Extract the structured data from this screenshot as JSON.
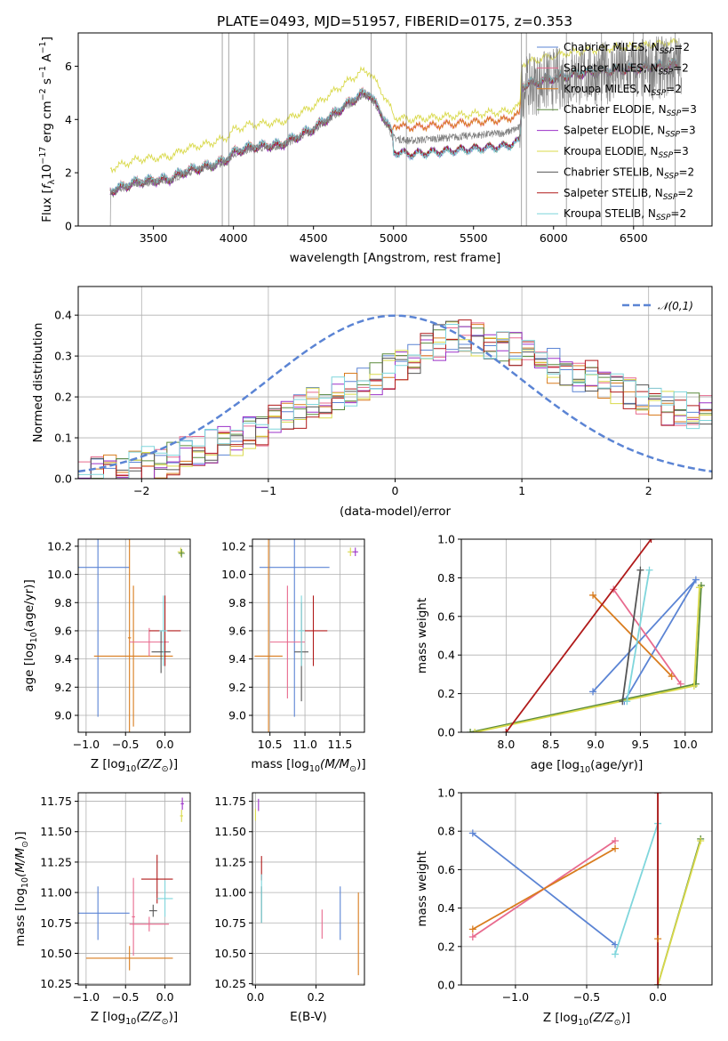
{
  "figure": {
    "title": "PLATE=0493, MJD=51957, FIBERID=0175, z=0.353"
  },
  "models": [
    {
      "name": "Chabrier MILES",
      "nssp": "2",
      "color": "#5b84d4"
    },
    {
      "name": "Salpeter MILES",
      "nssp": "2",
      "color": "#e86a8e"
    },
    {
      "name": "Kroupa MILES",
      "nssp": "2",
      "color": "#d97c1e"
    },
    {
      "name": "Chabrier ELODIE",
      "nssp": "3",
      "color": "#5a8a3c"
    },
    {
      "name": "Salpeter ELODIE",
      "nssp": "3",
      "color": "#9b30c8"
    },
    {
      "name": "Kroupa ELODIE",
      "nssp": "3",
      "color": "#d9d94a"
    },
    {
      "name": "Chabrier STELIB",
      "nssp": "2",
      "color": "#555555"
    },
    {
      "name": "Salpeter STELIB",
      "nssp": "2",
      "color": "#b01a1a"
    },
    {
      "name": "Kroupa STELIB",
      "nssp": "2",
      "color": "#7fd6dc"
    }
  ],
  "chart_data": [
    {
      "id": "spectrum",
      "type": "line",
      "xlabel": "wavelength [Angstrom, rest frame]",
      "ylabel_parts": [
        "Flux [",
        "f",
        "λ",
        "10",
        "−17",
        " erg cm",
        "−2",
        " s",
        "−1",
        " A",
        "−1",
        "]"
      ],
      "xlim": [
        3030,
        6990
      ],
      "ylim": [
        0,
        7.25
      ],
      "xticks": [
        3500,
        4000,
        4500,
        5000,
        5500,
        6000,
        6500
      ],
      "yticks": [
        0,
        2,
        4,
        6
      ],
      "data_color": "#808080",
      "continuum_knots": [
        [
          3230,
          1.25
        ],
        [
          3400,
          1.6
        ],
        [
          3600,
          1.7
        ],
        [
          3700,
          2.0
        ],
        [
          3850,
          2.2
        ],
        [
          3950,
          2.4
        ],
        [
          4000,
          2.7
        ],
        [
          4100,
          2.9
        ],
        [
          4300,
          3.0
        ],
        [
          4500,
          3.6
        ],
        [
          4800,
          4.9
        ],
        [
          4850,
          4.9
        ],
        [
          4950,
          3.9
        ],
        [
          5000,
          3.3
        ],
        [
          5100,
          3.2
        ],
        [
          5300,
          3.3
        ],
        [
          5500,
          3.4
        ],
        [
          5700,
          3.5
        ],
        [
          5790,
          3.7
        ],
        [
          5800,
          5.2
        ],
        [
          6000,
          5.5
        ],
        [
          6200,
          5.7
        ],
        [
          6400,
          5.8
        ],
        [
          6600,
          5.9
        ],
        [
          6760,
          6.0
        ]
      ],
      "model_offsets": [
        0.12,
        0.12,
        0.12,
        0.0,
        0.0,
        0.9,
        0.05,
        0.05,
        0.12
      ],
      "model_region_offsets": [
        {
          "from": 5000,
          "to": 5800,
          "offsets": [
            -0.5,
            0.5,
            0.5,
            -0.5,
            -0.5,
            0.8,
            -0.5,
            -0.5,
            -0.55
          ]
        }
      ],
      "noise": 0.15,
      "noise_regions": [
        {
          "from": 5790,
          "to": 6800,
          "noise": 1.2
        }
      ],
      "spikes": [
        3930,
        3970,
        4130,
        4340,
        4860,
        5080,
        5800,
        5830,
        6080,
        6300,
        6500,
        6560,
        6760
      ],
      "legend_position": "upper right"
    },
    {
      "id": "residual_hist",
      "type": "step",
      "xlabel": "(data-model)/error",
      "ylabel": "Normed distribution",
      "xlim": [
        -2.5,
        2.5
      ],
      "ylim": [
        0,
        0.47
      ],
      "xticks": [
        -2,
        -1,
        0,
        1,
        2
      ],
      "yticks": [
        0.0,
        0.1,
        0.2,
        0.3,
        0.4
      ],
      "bin_width": 0.1,
      "gaussian": {
        "label": "𝒩(0,1)",
        "mu": 0,
        "sigma": 1,
        "color": "#5b84d4"
      },
      "envelope": [
        [
          -2.5,
          0.0
        ],
        [
          -2.0,
          0.03
        ],
        [
          -1.5,
          0.07
        ],
        [
          -1.0,
          0.13
        ],
        [
          -0.5,
          0.2
        ],
        [
          0.0,
          0.27
        ],
        [
          0.3,
          0.33
        ],
        [
          0.6,
          0.35
        ],
        [
          0.9,
          0.32
        ],
        [
          1.2,
          0.28
        ],
        [
          1.6,
          0.24
        ],
        [
          2.0,
          0.18
        ],
        [
          2.5,
          0.16
        ]
      ],
      "legend_position": "upper right"
    },
    {
      "id": "age_vs_Z",
      "type": "errorbar",
      "xlabel_parts": [
        "Z [log",
        "10",
        "(Z/Z",
        "⊙",
        ")]"
      ],
      "ylabel_parts": [
        "age  [log",
        "10",
        "(age/yr)]"
      ],
      "xlim": [
        -1.1,
        0.32
      ],
      "ylim": [
        8.88,
        10.25
      ],
      "xticks": [
        -1.0,
        -0.5,
        0.0
      ],
      "yticks": [
        9.0,
        9.2,
        9.4,
        9.6,
        9.8,
        10.0,
        10.2
      ],
      "points": [
        {
          "x": -0.85,
          "xerr": 0.4,
          "y": 10.05,
          "yerr": 1.06,
          "model": 0
        },
        {
          "x": -0.4,
          "xerr": 0.5,
          "y": 9.42,
          "yerr": 0.5,
          "model": 2
        },
        {
          "x": -0.45,
          "xerr": 0.02,
          "y": 9.55,
          "yerr": 0.7,
          "model": 2
        },
        {
          "x": -0.2,
          "xerr": 0.25,
          "y": 9.52,
          "yerr": 0.1,
          "model": 1
        },
        {
          "x": 0.0,
          "xerr": 0.2,
          "y": 9.6,
          "yerr": 0.25,
          "model": 7
        },
        {
          "x": -0.05,
          "xerr": 0.12,
          "y": 9.45,
          "yerr": 0.15,
          "model": 6
        },
        {
          "x": -0.02,
          "xerr": 0.05,
          "y": 9.6,
          "yerr": 0.25,
          "model": 8
        },
        {
          "x": 0.2,
          "xerr": 0.04,
          "y": 10.16,
          "yerr": 0.03,
          "model": 5
        },
        {
          "x": 0.21,
          "xerr": 0.04,
          "y": 10.15,
          "yerr": 0.03,
          "model": 3
        }
      ]
    },
    {
      "id": "age_vs_mass",
      "type": "errorbar",
      "xlabel_parts": [
        "mass [log",
        "10",
        "(M/M",
        "⊙",
        ")]"
      ],
      "xlim": [
        10.25,
        11.85
      ],
      "ylim": [
        8.88,
        10.25
      ],
      "xticks": [
        10.5,
        11.0,
        11.5
      ],
      "yticks": [
        9.0,
        9.2,
        9.4,
        9.6,
        9.8,
        10.0,
        10.2
      ],
      "points": [
        {
          "x": 10.85,
          "xerr": 0.5,
          "y": 10.05,
          "yerr": 1.06,
          "model": 0
        },
        {
          "x": 10.48,
          "xerr": 0.2,
          "y": 9.42,
          "yerr": 1.2,
          "model": 2
        },
        {
          "x": 10.75,
          "xerr": 0.25,
          "y": 9.52,
          "yerr": 0.4,
          "model": 1
        },
        {
          "x": 11.12,
          "xerr": 0.2,
          "y": 9.6,
          "yerr": 0.25,
          "model": 7
        },
        {
          "x": 10.95,
          "xerr": 0.1,
          "y": 9.45,
          "yerr": 0.35,
          "model": 6
        },
        {
          "x": 10.95,
          "xerr": 0.05,
          "y": 9.6,
          "yerr": 0.25,
          "model": 8
        },
        {
          "x": 11.65,
          "xerr": 0.04,
          "y": 10.16,
          "yerr": 0.03,
          "model": 5
        },
        {
          "x": 11.72,
          "xerr": 0.04,
          "y": 10.16,
          "yerr": 0.03,
          "model": 4
        }
      ]
    },
    {
      "id": "weight_vs_age",
      "type": "line",
      "xlabel_parts": [
        "age  [log",
        "10",
        "(age/yr)]"
      ],
      "ylabel": "mass weight",
      "xlim": [
        7.5,
        10.3
      ],
      "ylim": [
        0,
        1
      ],
      "xticks": [
        8.0,
        8.5,
        9.0,
        9.5,
        10.0
      ],
      "yticks": [
        0.0,
        0.2,
        0.4,
        0.6,
        0.8,
        1.0
      ],
      "series": [
        {
          "model": 0,
          "x": [
            8.97,
            10.12,
            9.32
          ],
          "y": [
            0.21,
            0.79,
            0.16
          ]
        },
        {
          "model": 1,
          "x": [
            9.2,
            9.95
          ],
          "y": [
            0.74,
            0.25
          ]
        },
        {
          "model": 2,
          "x": [
            8.97,
            9.85
          ],
          "y": [
            0.71,
            0.29
          ]
        },
        {
          "model": 3,
          "x": [
            7.6,
            10.12,
            10.18
          ],
          "y": [
            0.0,
            0.25,
            0.76
          ]
        },
        {
          "model": 5,
          "x": [
            7.65,
            10.1,
            10.16
          ],
          "y": [
            0.0,
            0.24,
            0.75
          ]
        },
        {
          "model": 6,
          "x": [
            9.3,
            9.5
          ],
          "y": [
            0.16,
            0.84
          ]
        },
        {
          "model": 7,
          "x": [
            8.0,
            9.62
          ],
          "y": [
            0.0,
            1.0
          ]
        },
        {
          "model": 8,
          "x": [
            9.35,
            9.6
          ],
          "y": [
            0.16,
            0.84
          ]
        }
      ]
    },
    {
      "id": "mass_vs_Z",
      "type": "errorbar",
      "xlabel_parts": [
        "Z [log",
        "10",
        "(Z/Z",
        "⊙",
        ")]"
      ],
      "ylabel_parts": [
        "mass [log",
        "10",
        "(M/M",
        "⊙",
        ")]"
      ],
      "xlim": [
        -1.1,
        0.32
      ],
      "ylim": [
        10.24,
        11.82
      ],
      "xticks": [
        -1.0,
        -0.5,
        0.0
      ],
      "yticks": [
        10.25,
        10.5,
        10.75,
        11.0,
        11.25,
        11.5,
        11.75
      ],
      "points": [
        {
          "x": -0.85,
          "xerr": 0.4,
          "y": 10.83,
          "yerr": 0.22,
          "model": 0
        },
        {
          "x": -0.45,
          "xerr": 0.55,
          "y": 10.46,
          "yerr": 0.1,
          "model": 2
        },
        {
          "x": -0.4,
          "xerr": 0.02,
          "y": 10.8,
          "yerr": 0.32,
          "model": 1
        },
        {
          "x": -0.2,
          "xerr": 0.25,
          "y": 10.74,
          "yerr": 0.06,
          "model": 1
        },
        {
          "x": -0.1,
          "xerr": 0.2,
          "y": 11.11,
          "yerr": 0.2,
          "model": 7
        },
        {
          "x": -0.15,
          "xerr": 0.05,
          "y": 10.85,
          "yerr": 0.05,
          "model": 6
        },
        {
          "x": 0.0,
          "xerr": 0.1,
          "y": 10.95,
          "yerr": 0.15,
          "model": 8
        },
        {
          "x": 0.22,
          "xerr": 0.02,
          "y": 11.73,
          "yerr": 0.05,
          "model": 4
        },
        {
          "x": 0.21,
          "xerr": 0.02,
          "y": 11.63,
          "yerr": 0.05,
          "model": 5
        }
      ]
    },
    {
      "id": "mass_vs_EBV",
      "type": "errorbar",
      "xlabel": "E(B-V)",
      "xlim": [
        -0.01,
        0.36
      ],
      "ylim": [
        10.24,
        11.82
      ],
      "xticks": [
        0.0,
        0.2
      ],
      "yticks": [
        10.25,
        10.5,
        10.75,
        11.0,
        11.25,
        11.5,
        11.75
      ],
      "points": [
        {
          "x": 0.28,
          "xerr": 0,
          "y": 10.83,
          "yerr": 0.22,
          "model": 0
        },
        {
          "x": 0.34,
          "xerr": 0,
          "y": 10.66,
          "yerr": 0.34,
          "model": 2
        },
        {
          "x": 0.22,
          "xerr": 0,
          "y": 10.74,
          "yerr": 0.12,
          "model": 1
        },
        {
          "x": 0.02,
          "xerr": 0,
          "y": 11.2,
          "yerr": 0.1,
          "model": 7
        },
        {
          "x": 0.02,
          "xerr": 0,
          "y": 10.9,
          "yerr": 0.15,
          "model": 6
        },
        {
          "x": 0.02,
          "xerr": 0,
          "y": 10.95,
          "yerr": 0.2,
          "model": 8
        },
        {
          "x": 0.01,
          "xerr": 0,
          "y": 11.72,
          "yerr": 0.05,
          "model": 4
        },
        {
          "x": 0.0,
          "xerr": 0,
          "y": 11.64,
          "yerr": 0.05,
          "model": 5
        }
      ]
    },
    {
      "id": "weight_vs_Z",
      "type": "line",
      "xlabel_parts": [
        "Z [log",
        "10",
        "(Z/Z",
        "⊙",
        ")]"
      ],
      "ylabel": "mass weight",
      "xlim": [
        -1.38,
        0.38
      ],
      "ylim": [
        0,
        1
      ],
      "xticks": [
        -1.0,
        -0.5,
        0.0
      ],
      "yticks": [
        0.0,
        0.2,
        0.4,
        0.6,
        0.8,
        1.0
      ],
      "series": [
        {
          "model": 0,
          "x": [
            -1.3,
            -0.3
          ],
          "y": [
            0.79,
            0.21
          ]
        },
        {
          "model": 1,
          "x": [
            -1.3,
            -0.3
          ],
          "y": [
            0.25,
            0.75
          ]
        },
        {
          "model": 2,
          "x": [
            -1.3,
            -0.3
          ],
          "y": [
            0.29,
            0.71
          ]
        },
        {
          "model": 3,
          "x": [
            0.0,
            0.3
          ],
          "y": [
            0.0,
            0.76
          ]
        },
        {
          "model": 5,
          "x": [
            0.0,
            0.3
          ],
          "y": [
            0.0,
            0.75
          ]
        },
        {
          "model": 8,
          "x": [
            -0.3,
            0.0
          ],
          "y": [
            0.16,
            0.84
          ]
        },
        {
          "model": 6,
          "x": [
            0.0,
            0.0
          ],
          "y": [
            0.0,
            1.0
          ]
        },
        {
          "model": 7,
          "x": [
            0.0,
            0.0
          ],
          "y": [
            0.0,
            1.0
          ]
        }
      ],
      "extra_marks": [
        {
          "model": 2,
          "x": 0.0,
          "y": 0.24
        }
      ]
    }
  ]
}
